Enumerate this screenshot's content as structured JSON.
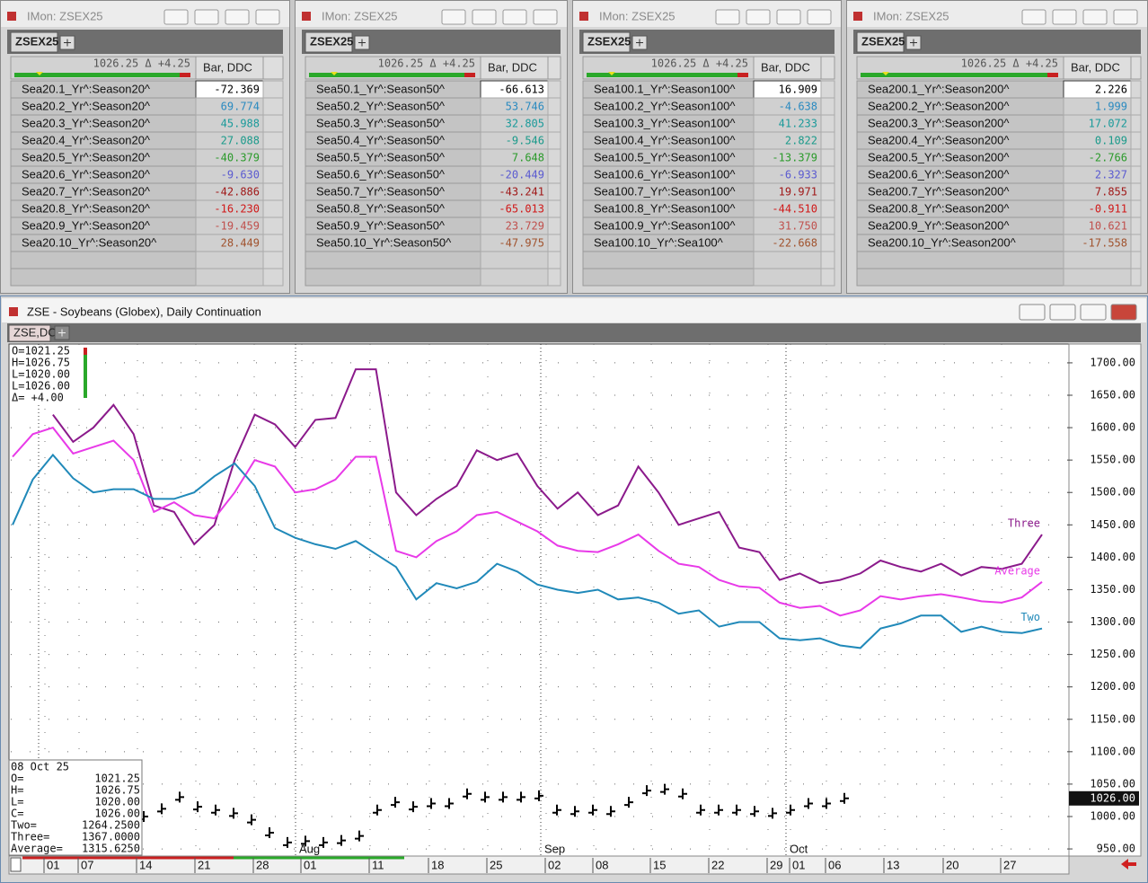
{
  "monitors": [
    {
      "title": "IMon: ZSEX25",
      "tab": "ZSEX25",
      "quote": "1026.25 Δ +4.25",
      "column": "Bar, DDC",
      "rows": [
        [
          "Sea20.1_Yr^:Season20^",
          "-72.369"
        ],
        [
          "Sea20.2_Yr^:Season20^",
          "69.774"
        ],
        [
          "Sea20.3_Yr^:Season20^",
          "45.988"
        ],
        [
          "Sea20.4_Yr^:Season20^",
          "27.088"
        ],
        [
          "Sea20.5_Yr^:Season20^",
          "-40.379"
        ],
        [
          "Sea20.6_Yr^:Season20^",
          "-9.630"
        ],
        [
          "Sea20.7_Yr^:Season20^",
          "-42.886"
        ],
        [
          "Sea20.8_Yr^:Season20^",
          "-16.230"
        ],
        [
          "Sea20.9_Yr^:Season20^",
          "-19.459"
        ],
        [
          "Sea20.10_Yr^:Season20^",
          "28.449"
        ]
      ]
    },
    {
      "title": "IMon: ZSEX25",
      "tab": "ZSEX25",
      "quote": "1026.25 Δ +4.25",
      "column": "Bar, DDC",
      "rows": [
        [
          "Sea50.1_Yr^:Season50^",
          "-66.613"
        ],
        [
          "Sea50.2_Yr^:Season50^",
          "53.746"
        ],
        [
          "Sea50.3_Yr^:Season50^",
          "32.805"
        ],
        [
          "Sea50.4_Yr^:Season50^",
          "-9.546"
        ],
        [
          "Sea50.5_Yr^:Season50^",
          "7.648"
        ],
        [
          "Sea50.6_Yr^:Season50^",
          "-20.449"
        ],
        [
          "Sea50.7_Yr^:Season50^",
          "-43.241"
        ],
        [
          "Sea50.8_Yr^:Season50^",
          "-65.013"
        ],
        [
          "Sea50.9_Yr^:Season50^",
          "23.729"
        ],
        [
          "Sea50.10_Yr^:Season50^",
          "-47.975"
        ]
      ]
    },
    {
      "title": "IMon: ZSEX25",
      "tab": "ZSEX25",
      "quote": "1026.25 Δ +4.25",
      "column": "Bar, DDC",
      "rows": [
        [
          "Sea100.1_Yr^:Season100^",
          "16.909"
        ],
        [
          "Sea100.2_Yr^:Season100^",
          "-4.638"
        ],
        [
          "Sea100.3_Yr^:Season100^",
          "41.233"
        ],
        [
          "Sea100.4_Yr^:Season100^",
          "2.822"
        ],
        [
          "Sea100.5_Yr^:Season100^",
          "-13.379"
        ],
        [
          "Sea100.6_Yr^:Season100^",
          "-6.933"
        ],
        [
          "Sea100.7_Yr^:Season100^",
          "19.971"
        ],
        [
          "Sea100.8_Yr^:Season100^",
          "-44.510"
        ],
        [
          "Sea100.9_Yr^:Season100^",
          "31.750"
        ],
        [
          "Sea100.10_Yr^:Sea100^",
          "-22.668"
        ]
      ]
    },
    {
      "title": "IMon: ZSEX25",
      "tab": "ZSEX25",
      "quote": "1026.25 Δ +4.25",
      "column": "Bar, DDC",
      "rows": [
        [
          "Sea200.1_Yr^:Season200^",
          "2.226"
        ],
        [
          "Sea200.2_Yr^:Season200^",
          "1.999"
        ],
        [
          "Sea200.3_Yr^:Season200^",
          "17.072"
        ],
        [
          "Sea200.4_Yr^:Season200^",
          "0.109"
        ],
        [
          "Sea200.5_Yr^:Season200^",
          "-2.766"
        ],
        [
          "Sea200.6_Yr^:Season200^",
          "2.327"
        ],
        [
          "Sea200.7_Yr^:Season200^",
          "7.855"
        ],
        [
          "Sea200.8_Yr^:Season200^",
          "-0.911"
        ],
        [
          "Sea200.9_Yr^:Season200^",
          "10.621"
        ],
        [
          "Sea200.10_Yr^:Season200^",
          "-17.558"
        ]
      ]
    }
  ],
  "row_colors": [
    "#000000",
    "#2a8ac0",
    "#1a9a9a",
    "#1a9a8a",
    "#2a9a2a",
    "#5a5ad0",
    "#a01818",
    "#d01818",
    "#c0504d",
    "#a0522d"
  ],
  "chart_window": {
    "title": "ZSE - Soybeans (Globex), Daily Continuation",
    "tab": "ZSE,DC",
    "ohlc_legend": [
      "O=1021.25",
      "H=1026.75",
      "L=1020.00",
      "L=1026.00",
      "Δ=   +4.00"
    ],
    "info_date": "08 Oct 25",
    "info_labels": [
      "O=",
      "H=",
      "L=",
      "C=",
      "Two=",
      "Three=",
      "Average="
    ],
    "info_values": [
      "1021.25",
      "1026.75",
      "1020.00",
      "1026.00",
      "1264.2500",
      "1367.0000",
      "1315.6250"
    ],
    "last_price": "1026.00",
    "x_labels": [
      "01",
      "07",
      "14",
      "21",
      "28",
      "01",
      "11",
      "18",
      "25",
      "02",
      "08",
      "15",
      "22",
      "29",
      "01",
      "06",
      "13",
      "20",
      "27"
    ],
    "month_labels": [
      "Aug",
      "Sep",
      "Oct"
    ]
  },
  "chart_data": {
    "type": "line",
    "series": [
      {
        "name": "Three",
        "color": "#8b1a8b",
        "values": [
          null,
          null,
          1620,
          1578,
          1600,
          1635,
          1590,
          1480,
          1470,
          1420,
          1450,
          1550,
          1620,
          1605,
          1570,
          1612,
          1615,
          1690,
          1690,
          1500,
          1465,
          1490,
          1510,
          1565,
          1550,
          1560,
          1510,
          1475,
          1500,
          1465,
          1480,
          1540,
          1500,
          1450,
          1460,
          1470,
          1415,
          1408,
          1365,
          1375,
          1360,
          1365,
          1375,
          1395,
          1385,
          1378,
          1390,
          1372,
          1385,
          1382,
          1390,
          1435
        ]
      },
      {
        "name": "Average",
        "color": "#e83ae8",
        "values": [
          1555,
          1590,
          1600,
          1560,
          1570,
          1580,
          1550,
          1470,
          1485,
          1465,
          1460,
          1500,
          1550,
          1540,
          1500,
          1505,
          1520,
          1555,
          1555,
          1410,
          1400,
          1425,
          1440,
          1465,
          1470,
          1455,
          1440,
          1418,
          1410,
          1408,
          1420,
          1435,
          1410,
          1390,
          1385,
          1365,
          1355,
          1353,
          1330,
          1322,
          1325,
          1310,
          1318,
          1340,
          1335,
          1340,
          1343,
          1338,
          1332,
          1330,
          1338,
          1362
        ]
      },
      {
        "name": "Two",
        "color": "#2089b9",
        "values": [
          1450,
          1520,
          1558,
          1522,
          1500,
          1505,
          1505,
          1490,
          1490,
          1500,
          1525,
          1545,
          1510,
          1445,
          1430,
          1420,
          1413,
          1425,
          1405,
          1385,
          1335,
          1360,
          1352,
          1362,
          1390,
          1378,
          1358,
          1350,
          1345,
          1350,
          1335,
          1338,
          1330,
          1313,
          1318,
          1293,
          1300,
          1300,
          1275,
          1272,
          1275,
          1264,
          1260,
          1290,
          1298,
          1310,
          1310,
          1285,
          1293,
          1285,
          1283,
          1290
        ]
      }
    ],
    "price_bars": {
      "color": "#000000",
      "values": [
        1000,
        1012,
        1030,
        1015,
        1010,
        1005,
        995,
        975,
        960,
        962,
        960,
        963,
        970,
        1010,
        1022,
        1015,
        1020,
        1020,
        1035,
        1030,
        1030,
        1030,
        1032,
        1010,
        1008,
        1010,
        1008,
        1022,
        1040,
        1042,
        1035,
        1010,
        1010,
        1010,
        1008,
        1005,
        1010,
        1020,
        1020,
        1028
      ]
    },
    "ylim": [
      939,
      1729
    ],
    "yticks": [
      {
        "value": 950,
        "label": "950.00"
      },
      {
        "value": 1000,
        "label": "1000.00"
      },
      {
        "value": 1050,
        "label": "1050.00"
      },
      {
        "value": 1100,
        "label": "1100.00"
      },
      {
        "value": 1150,
        "label": "1150.00"
      },
      {
        "value": 1200,
        "label": "1200.00"
      },
      {
        "value": 1250,
        "label": "1250.00"
      },
      {
        "value": 1300,
        "label": "1300.00"
      },
      {
        "value": 1350,
        "label": "1350.00"
      },
      {
        "value": 1400,
        "label": "1400.00"
      },
      {
        "value": 1450,
        "label": "1450.00"
      },
      {
        "value": 1500,
        "label": "1500.00"
      },
      {
        "value": 1550,
        "label": "1550.00"
      },
      {
        "value": 1600,
        "label": "1600.00"
      },
      {
        "value": 1650,
        "label": "1650.00"
      },
      {
        "value": 1700,
        "label": "1700.00"
      }
    ],
    "grid": true
  }
}
